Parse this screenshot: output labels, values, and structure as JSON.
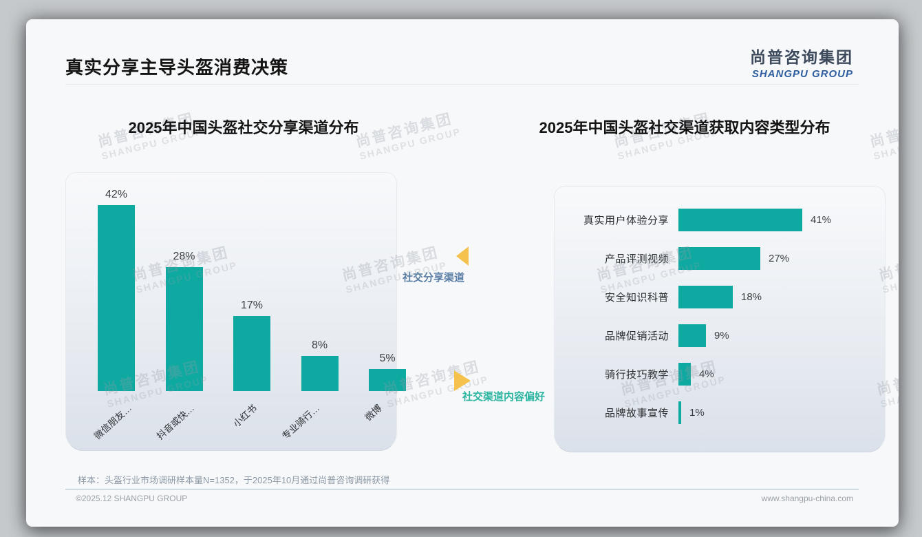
{
  "slide": {
    "title": "真实分享主导头盔消费决策",
    "logo": {
      "cn": "尚普咨询集团",
      "en": "SHANGPU GROUP"
    },
    "footnote": "样本：头盔行业市场调研样本量N=1352，于2025年10月通过尚普咨询调研获得",
    "footer": {
      "left": "©2025.12 SHANGPU GROUP",
      "right": "www.shangpu-china.com"
    },
    "watermark": {
      "cn": "尚普咨询集团",
      "en": "SHANGPU GROUP"
    }
  },
  "annotations": {
    "share_channels": "社交分享渠道",
    "content_preference": "社交渠道内容偏好"
  },
  "colors": {
    "bar_teal": "#0ea9a1",
    "arrow_yellow": "#f5c34d",
    "share_label_blue": "#5b7fa6",
    "preference_label_teal": "#2ab5a0",
    "logo_blue": "#2d5d9f"
  },
  "chart_data": [
    {
      "type": "bar",
      "orientation": "vertical",
      "title": "2025年中国头盔社交分享渠道分布",
      "categories": [
        "微信朋友…",
        "抖音或快…",
        "小红书",
        "专业骑行…",
        "微博"
      ],
      "values": [
        42,
        28,
        17,
        8,
        5
      ],
      "unit": "%",
      "value_labels": true,
      "axes_hidden": true,
      "ylim": [
        0,
        49
      ]
    },
    {
      "type": "bar",
      "orientation": "horizontal",
      "title": "2025年中国头盔社交渠道获取内容类型分布",
      "categories": [
        "真实用户体验分享",
        "产品评测视频",
        "安全知识科普",
        "品牌促销活动",
        "骑行技巧教学",
        "品牌故事宣传"
      ],
      "values": [
        41,
        27,
        18,
        9,
        4,
        1
      ],
      "unit": "%",
      "value_labels": true,
      "axes_hidden": true,
      "xlim": [
        0,
        45
      ]
    }
  ]
}
